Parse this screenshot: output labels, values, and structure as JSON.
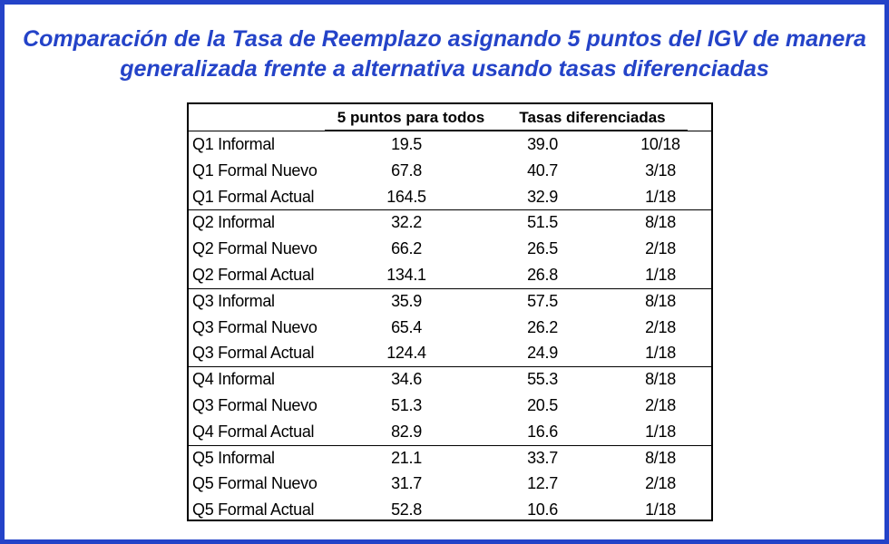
{
  "title": "Comparación de la Tasa de Reemplazo asignando 5 puntos del IGV de manera generalizada frente a alternativa usando tasas diferenciadas",
  "chart_data": {
    "type": "table",
    "title": "Comparación de la Tasa de Reemplazo asignando 5 puntos del IGV de manera generalizada frente a alternativa usando tasas diferenciadas",
    "columns": [
      "",
      "5 puntos para todos",
      "Tasas diferenciadas",
      ""
    ],
    "rows": [
      [
        "Q1 Informal",
        "19.5",
        "39.0",
        "10/18"
      ],
      [
        "Q1 Formal Nuevo",
        "67.8",
        "40.7",
        "3/18"
      ],
      [
        "Q1 Formal Actual",
        "164.5",
        "32.9",
        "1/18"
      ],
      [
        "Q2 Informal",
        "32.2",
        "51.5",
        "8/18"
      ],
      [
        "Q2 Formal Nuevo",
        "66.2",
        "26.5",
        "2/18"
      ],
      [
        "Q2 Formal Actual",
        "134.1",
        "26.8",
        "1/18"
      ],
      [
        "Q3 Informal",
        "35.9",
        "57.5",
        "8/18"
      ],
      [
        "Q3 Formal Nuevo",
        "65.4",
        "26.2",
        "2/18"
      ],
      [
        "Q3 Formal Actual",
        "124.4",
        "24.9",
        "1/18"
      ],
      [
        "Q4 Informal",
        "34.6",
        "55.3",
        "8/18"
      ],
      [
        "Q3 Formal Nuevo",
        "51.3",
        "20.5",
        "2/18"
      ],
      [
        "Q4 Formal Actual",
        "82.9",
        "16.6",
        "1/18"
      ],
      [
        "Q5 Informal",
        "21.1",
        "33.7",
        "8/18"
      ],
      [
        "Q5 Formal Nuevo",
        "31.7",
        "12.7",
        "2/18"
      ],
      [
        "Q5 Formal Actual",
        "52.8",
        "10.6",
        "1/18"
      ]
    ],
    "group_size": 3
  },
  "colors": {
    "accent": "#2443c8",
    "text": "#000000",
    "background": "#ffffff"
  }
}
